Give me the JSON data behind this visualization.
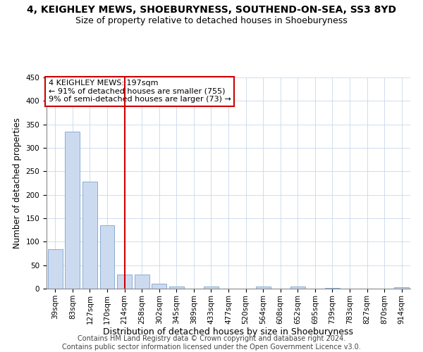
{
  "title": "4, KEIGHLEY MEWS, SHOEBURYNESS, SOUTHEND-ON-SEA, SS3 8YD",
  "subtitle": "Size of property relative to detached houses in Shoeburyness",
  "xlabel": "Distribution of detached houses by size in Shoeburyness",
  "ylabel": "Number of detached properties",
  "categories": [
    "39sqm",
    "83sqm",
    "127sqm",
    "170sqm",
    "214sqm",
    "258sqm",
    "302sqm",
    "345sqm",
    "389sqm",
    "433sqm",
    "477sqm",
    "520sqm",
    "564sqm",
    "608sqm",
    "652sqm",
    "695sqm",
    "739sqm",
    "783sqm",
    "827sqm",
    "870sqm",
    "914sqm"
  ],
  "values": [
    84,
    335,
    228,
    135,
    30,
    30,
    10,
    5,
    0,
    5,
    0,
    0,
    4,
    0,
    4,
    0,
    2,
    0,
    0,
    0,
    3
  ],
  "bar_color": "#ccdaf0",
  "bar_edge_color": "#7ba3cc",
  "vline_x": 4.0,
  "vline_color": "#cc0000",
  "annotation_text": "4 KEIGHLEY MEWS: 197sqm\n← 91% of detached houses are smaller (755)\n9% of semi-detached houses are larger (73) →",
  "annotation_box_color": "#ffffff",
  "annotation_box_edge_color": "#cc0000",
  "ylim": [
    0,
    450
  ],
  "yticks": [
    0,
    50,
    100,
    150,
    200,
    250,
    300,
    350,
    400,
    450
  ],
  "footnote": "Contains HM Land Registry data © Crown copyright and database right 2024.\nContains public sector information licensed under the Open Government Licence v3.0.",
  "title_fontsize": 10,
  "subtitle_fontsize": 9,
  "xlabel_fontsize": 9,
  "ylabel_fontsize": 8.5,
  "tick_fontsize": 7.5,
  "annotation_fontsize": 8,
  "footnote_fontsize": 7,
  "background_color": "#ffffff",
  "grid_color": "#c8d8ea"
}
